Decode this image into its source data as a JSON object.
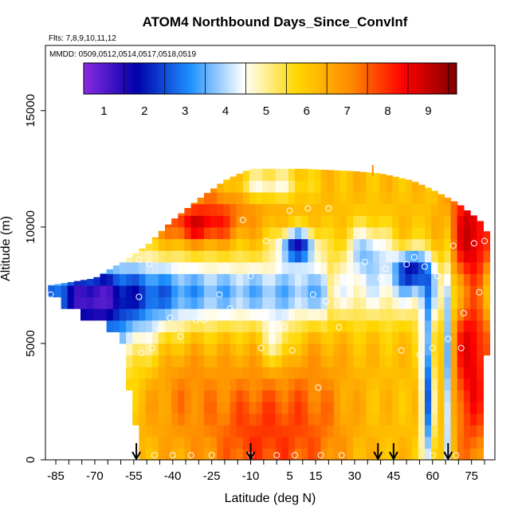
{
  "chart_data": {
    "type": "heatmap",
    "title": "ATOM4 Northbound Days_Since_ConvInf",
    "subtitle_flights": "Flts: 7,8,9,10,11,12",
    "subtitle_dates": "MMDD: 0509,0512,0514,0517,0518,0519",
    "xlabel": "Latitude (deg N)",
    "ylabel": "Altitude (m)",
    "xlim": [
      -89,
      84
    ],
    "ylim": [
      0,
      17800
    ],
    "x_ticks": [
      -85,
      -70,
      -55,
      -40,
      -25,
      -10,
      5,
      15,
      30,
      45,
      60,
      75
    ],
    "x_minor_step": 5,
    "y_ticks": [
      0,
      5000,
      10000,
      15000
    ],
    "colorbar": {
      "range": [
        0.5,
        9.7
      ],
      "ticks": [
        1,
        2,
        3,
        4,
        5,
        6,
        7,
        8,
        9
      ],
      "colors": [
        "#8a2be2",
        "#0000aa",
        "#1e90ff",
        "#ffffff",
        "#ffd700",
        "#ff8c00",
        "#ff0000",
        "#800000"
      ]
    },
    "field_cells_summary": {
      "lat_step": 2.5,
      "alt_step": 500,
      "value_range": [
        1,
        9.5
      ]
    },
    "descent_markers_lat": [
      -54,
      -10,
      39,
      45,
      66
    ],
    "marker_at_top_lat": 37,
    "sample_points": [
      {
        "lat": -87,
        "alt": 7100
      },
      {
        "lat": -53,
        "alt": 7000
      },
      {
        "lat": -53,
        "alt": 8600
      },
      {
        "lat": -49,
        "alt": 8400
      },
      {
        "lat": -52,
        "alt": 4600
      },
      {
        "lat": -48,
        "alt": 4800
      },
      {
        "lat": -45,
        "alt": 5600
      },
      {
        "lat": -41,
        "alt": 6100
      },
      {
        "lat": -37,
        "alt": 5300
      },
      {
        "lat": -31,
        "alt": 6000
      },
      {
        "lat": -28,
        "alt": 6000
      },
      {
        "lat": -22,
        "alt": 7100
      },
      {
        "lat": -18,
        "alt": 6500
      },
      {
        "lat": -13,
        "alt": 10300
      },
      {
        "lat": -10,
        "alt": 7900
      },
      {
        "lat": -6,
        "alt": 4800
      },
      {
        "lat": -4,
        "alt": 9400
      },
      {
        "lat": 1,
        "alt": 9400
      },
      {
        "lat": 3,
        "alt": 5700
      },
      {
        "lat": 5,
        "alt": 10700
      },
      {
        "lat": 6,
        "alt": 4700
      },
      {
        "lat": 12,
        "alt": 10800
      },
      {
        "lat": 14,
        "alt": 7100
      },
      {
        "lat": 16,
        "alt": 3100
      },
      {
        "lat": 19,
        "alt": 6800
      },
      {
        "lat": 20,
        "alt": 10800
      },
      {
        "lat": 24,
        "alt": 5700
      },
      {
        "lat": 34,
        "alt": 8500
      },
      {
        "lat": 40,
        "alt": 7800
      },
      {
        "lat": 42,
        "alt": 8200
      },
      {
        "lat": 48,
        "alt": 4700
      },
      {
        "lat": 50,
        "alt": 8400
      },
      {
        "lat": 53,
        "alt": 8700
      },
      {
        "lat": 57,
        "alt": 8300
      },
      {
        "lat": 55,
        "alt": 4500
      },
      {
        "lat": 60,
        "alt": 4800
      },
      {
        "lat": 62,
        "alt": 7900
      },
      {
        "lat": 68,
        "alt": 9200
      },
      {
        "lat": 71,
        "alt": 4800
      },
      {
        "lat": 74,
        "alt": 10900
      },
      {
        "lat": 76,
        "alt": 9300
      },
      {
        "lat": 78,
        "alt": 7200
      },
      {
        "lat": 80,
        "alt": 9400
      },
      {
        "lat": 72,
        "alt": 6300
      },
      {
        "lat": 66,
        "alt": 5200
      },
      {
        "lat": -47,
        "alt": 200
      },
      {
        "lat": -40,
        "alt": 200
      },
      {
        "lat": -33,
        "alt": 200
      },
      {
        "lat": -25,
        "alt": 200
      },
      {
        "lat": -10,
        "alt": 200
      },
      {
        "lat": 0,
        "alt": 200
      },
      {
        "lat": 7,
        "alt": 200
      },
      {
        "lat": 17,
        "alt": 200
      },
      {
        "lat": 25,
        "alt": 200
      },
      {
        "lat": 60,
        "alt": 200
      },
      {
        "lat": 69,
        "alt": 200
      }
    ]
  }
}
